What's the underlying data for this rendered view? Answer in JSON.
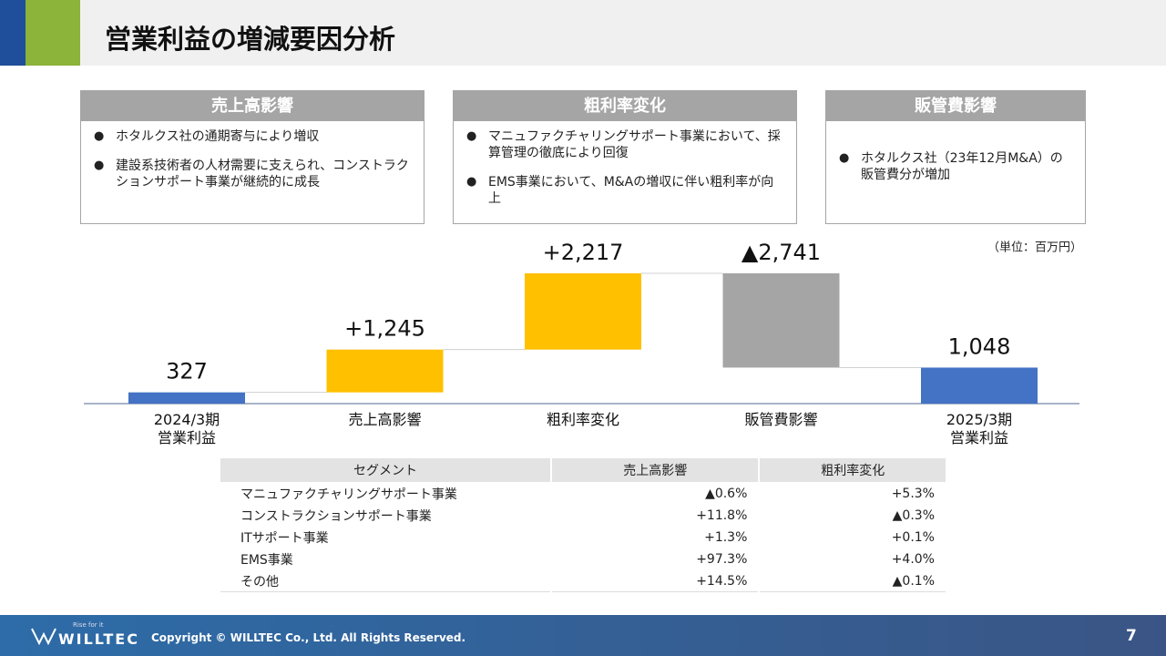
{
  "header": {
    "title": "営業利益の増減要因分析"
  },
  "panels": [
    {
      "title": "売上高影響",
      "bullets": [
        "ホタルクス社の通期寄与により増収",
        "建設系技術者の人材需要に支えられ、コンストラクションサポート事業が継続的に成長"
      ]
    },
    {
      "title": "粗利率変化",
      "bullets": [
        "マニュファクチャリングサポート事業において、採算管理の徹底により回復",
        "EMS事業において、M&Aの増収に伴い粗利率が向上"
      ]
    },
    {
      "title": "販管費影響",
      "bullets": [
        "ホタルクス社（23年12月M&A）の販管費分が増加"
      ]
    }
  ],
  "chart_data": {
    "type": "waterfall",
    "unit_note": "（単位：百万円）",
    "categories": [
      "2024/3期\n営業利益",
      "売上高影響",
      "粗利率変化",
      "販管費影響",
      "2025/3期\n営業利益"
    ],
    "values": [
      327,
      1245,
      2217,
      -2741,
      1048
    ],
    "value_labels": [
      "327",
      "+1,245",
      "+2,217",
      "▲2,741",
      "1,048"
    ],
    "measure": [
      "absolute",
      "relative",
      "relative",
      "relative",
      "total"
    ],
    "colors": [
      "#4472c4",
      "#ffc000",
      "#ffc000",
      "#a5a5a5",
      "#4472c4"
    ]
  },
  "table": {
    "columns": [
      "セグメント",
      "売上高影響",
      "粗利率変化"
    ],
    "rows": [
      [
        "マニュファクチャリングサポート事業",
        "▲0.6%",
        "+5.3%"
      ],
      [
        "コンストラクションサポート事業",
        "+11.8%",
        "▲0.3%"
      ],
      [
        "ITサポート事業",
        "+1.3%",
        "+0.1%"
      ],
      [
        "EMS事業",
        "+97.3%",
        "+4.0%"
      ],
      [
        "その他",
        "+14.5%",
        "▲0.1%"
      ]
    ]
  },
  "footer": {
    "tagline": "Rise for it",
    "logo": "WILLTEC",
    "copyright": "Copyright © WILLTEC Co., Ltd. All Rights Reserved.",
    "page": "7"
  }
}
